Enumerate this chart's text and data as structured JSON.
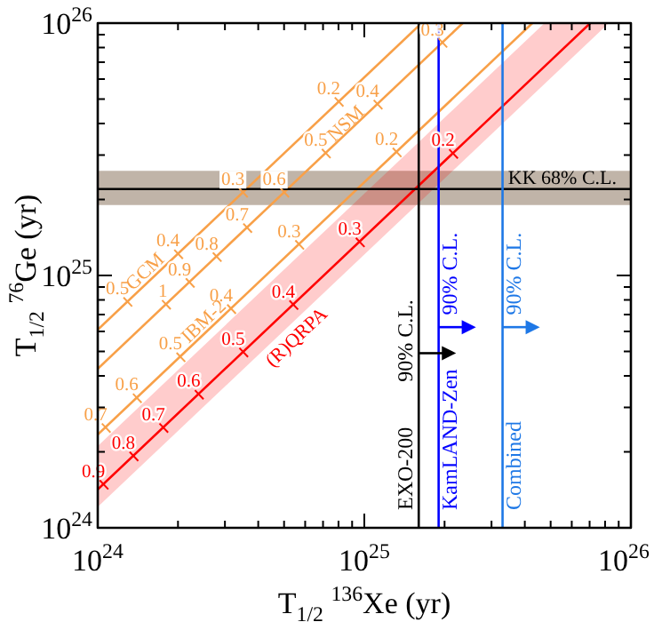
{
  "chart_data": {
    "type": "line",
    "xlabel": "T$_{1/2}$ $^{136}$Xe (yr)",
    "ylabel": "T$_{1/2}$ $^{76}$Ge (yr)",
    "log": "xy",
    "marker": "none",
    "line_style": "solid",
    "xlim": [
      1e+24,
      1e+26
    ],
    "ylim": [
      1e+24,
      1e+26
    ],
    "xticks": [
      {
        "value": 1e+24,
        "label": "10$^{24}$"
      },
      {
        "value": 2e+24,
        "label": null
      },
      {
        "value": 3e+24,
        "label": null
      },
      {
        "value": 4e+24,
        "label": null
      },
      {
        "value": 5e+24,
        "label": null
      },
      {
        "value": 6e+24,
        "label": null
      },
      {
        "value": 7e+24,
        "label": null
      },
      {
        "value": 8e+24,
        "label": null
      },
      {
        "value": 9e+24,
        "label": null
      },
      {
        "value": 1e+25,
        "label": "10$^{25}$"
      },
      {
        "value": 2e+25,
        "label": null
      },
      {
        "value": 3e+25,
        "label": null
      },
      {
        "value": 4e+25,
        "label": null
      },
      {
        "value": 5e+25,
        "label": null
      },
      {
        "value": 6e+25,
        "label": null
      },
      {
        "value": 7e+25,
        "label": null
      },
      {
        "value": 8e+25,
        "label": null
      },
      {
        "value": 9e+25,
        "label": null
      },
      {
        "value": 1e+26,
        "label": "10$^{26}$"
      }
    ],
    "yticks": [
      {
        "value": 1e+24,
        "label": "10$^{24}$"
      },
      {
        "value": 2e+24,
        "label": null
      },
      {
        "value": 3e+24,
        "label": null
      },
      {
        "value": 4e+24,
        "label": null
      },
      {
        "value": 5e+24,
        "label": null
      },
      {
        "value": 6e+24,
        "label": null
      },
      {
        "value": 7e+24,
        "label": null
      },
      {
        "value": 8e+24,
        "label": null
      },
      {
        "value": 9e+24,
        "label": null
      },
      {
        "value": 1e+25,
        "label": "10$^{25}$"
      },
      {
        "value": 2e+25,
        "label": null
      },
      {
        "value": 3e+25,
        "label": null
      },
      {
        "value": 4e+25,
        "label": null
      },
      {
        "value": 5e+25,
        "label": null
      },
      {
        "value": 6e+25,
        "label": null
      },
      {
        "value": 7e+25,
        "label": null
      },
      {
        "value": 8e+25,
        "label": null
      },
      {
        "value": 9e+25,
        "label": null
      },
      {
        "value": 1e+26,
        "label": "10$^{26}$"
      }
    ],
    "series": [
      {
        "color": "#f8a048",
        "x": [
          1e+24,
          1.64e+25
        ],
        "values": [
          6.1e+24,
          1e+26
        ]
      },
      {
        "color": "#f8a048",
        "x": [
          1e+24,
          2.34e+25
        ],
        "values": [
          4.27e+24,
          1e+26
        ]
      },
      {
        "color": "#f8a048",
        "x": [
          1e+24,
          4.27e+25
        ],
        "values": [
          2.34e+24,
          1e+26
        ]
      },
      {
        "color": "#ff0000",
        "x": [
          1e+24,
          4.74e+25,
          7.04e+25,
          8.26e+25
        ],
        "values": [
          1.42e+24,
          6.73e+25,
          1e+26,
          null
        ],
        "lower": [
          1.21e+24,
          5.74e+25,
          8.52e+25,
          1e+26
        ],
        "upper": [
          2.11e+24,
          1e+26,
          1e+26,
          1e+26
        ]
      }
    ],
    "bands": [
      {
        "axis": "y",
        "from": 1.9e+25,
        "to": 2.6e+25,
        "color": "#c0b4a8",
        "label": "KK 68% C.L."
      }
    ],
    "ref_lines": [
      {
        "axis": "y",
        "value": 2.2e+25,
        "color": "#000000"
      },
      {
        "axis": "x",
        "value": 1.6e+25,
        "color": "#000000",
        "label": "EXO-200"
      },
      {
        "axis": "x",
        "value": 1.9e+25,
        "color": "#0000ff",
        "label": "KamLAND-Zen"
      },
      {
        "axis": "x",
        "value": 3.3e+25,
        "color": "#1e78e6",
        "label": "Combined"
      }
    ],
    "annotations": [
      {
        "text": "0.5",
        "x": 1.29e+24,
        "y": 7.9e+24
      },
      {
        "text": "0.4",
        "x": 2e+24,
        "y": 1.22e+25
      },
      {
        "text": "0.3",
        "x": 3.5e+24,
        "y": 2.14e+25
      },
      {
        "text": "0.2",
        "x": 8e+24,
        "y": 4.9e+25
      },
      {
        "text": "1",
        "x": 1.8e+24,
        "y": 7.7e+24
      },
      {
        "text": "0.9",
        "x": 2.21e+24,
        "y": 9.4e+24
      },
      {
        "text": "0.8",
        "x": 2.79e+24,
        "y": 1.19e+25
      },
      {
        "text": "0.7",
        "x": 3.63e+24,
        "y": 1.55e+25
      },
      {
        "text": "0.6",
        "x": 5e+24,
        "y": 2.14e+25
      },
      {
        "text": "0.5",
        "x": 7.16e+24,
        "y": 3.06e+25
      },
      {
        "text": "0.4",
        "x": 1.12e+25,
        "y": 4.78e+25
      },
      {
        "text": "0.3",
        "x": 1.96e+25,
        "y": 8.4e+25
      },
      {
        "text": "0.7",
        "x": 1.07e+24,
        "y": 2.5e+24
      },
      {
        "text": "0.6",
        "x": 1.4e+24,
        "y": 3.28e+24
      },
      {
        "text": "0.5",
        "x": 2.04e+24,
        "y": 4.77e+24
      },
      {
        "text": "0.4",
        "x": 3.16e+24,
        "y": 7.4e+24
      },
      {
        "text": "0.3",
        "x": 5.69e+24,
        "y": 1.33e+25
      },
      {
        "text": "0.2",
        "x": 1.32e+25,
        "y": 3.09e+25
      },
      {
        "text": "0.9",
        "x": 1.05e+24,
        "y": 1.49e+24
      },
      {
        "text": "0.8",
        "x": 1.36e+24,
        "y": 1.93e+24
      },
      {
        "text": "0.7",
        "x": 1.76e+24,
        "y": 2.5e+24
      },
      {
        "text": "0.6",
        "x": 2.39e+24,
        "y": 3.39e+24
      },
      {
        "text": "0.5",
        "x": 3.51e+24,
        "y": 4.98e+24
      },
      {
        "text": "0.4",
        "x": 5.41e+24,
        "y": 7.68e+24
      },
      {
        "text": "0.3",
        "x": 9.6e+24,
        "y": 1.36e+25
      },
      {
        "text": "0.2",
        "x": 2.15e+25,
        "y": 3.05e+25
      },
      {
        "text": "GCM",
        "x": 1.51e+24,
        "y": 1.03e+25
      },
      {
        "text": "NSM",
        "x": 8.57e+24,
        "y": 3.98e+25
      },
      {
        "text": "IBM-2",
        "x": 2.51e+24,
        "y": 6.55e+24
      },
      {
        "text": "(R)QRPA",
        "x": 5.14e+24,
        "y": 6.22e+24
      },
      {
        "text": "90% C.L.",
        "x": 1.6e+25,
        "y": 4.92e+24
      },
      {
        "text": "90% C.L.",
        "x": 1.9e+25,
        "y": 6.24e+24
      },
      {
        "text": "90% C.L.",
        "x": 3.3e+25,
        "y": 6.24e+24
      }
    ]
  }
}
